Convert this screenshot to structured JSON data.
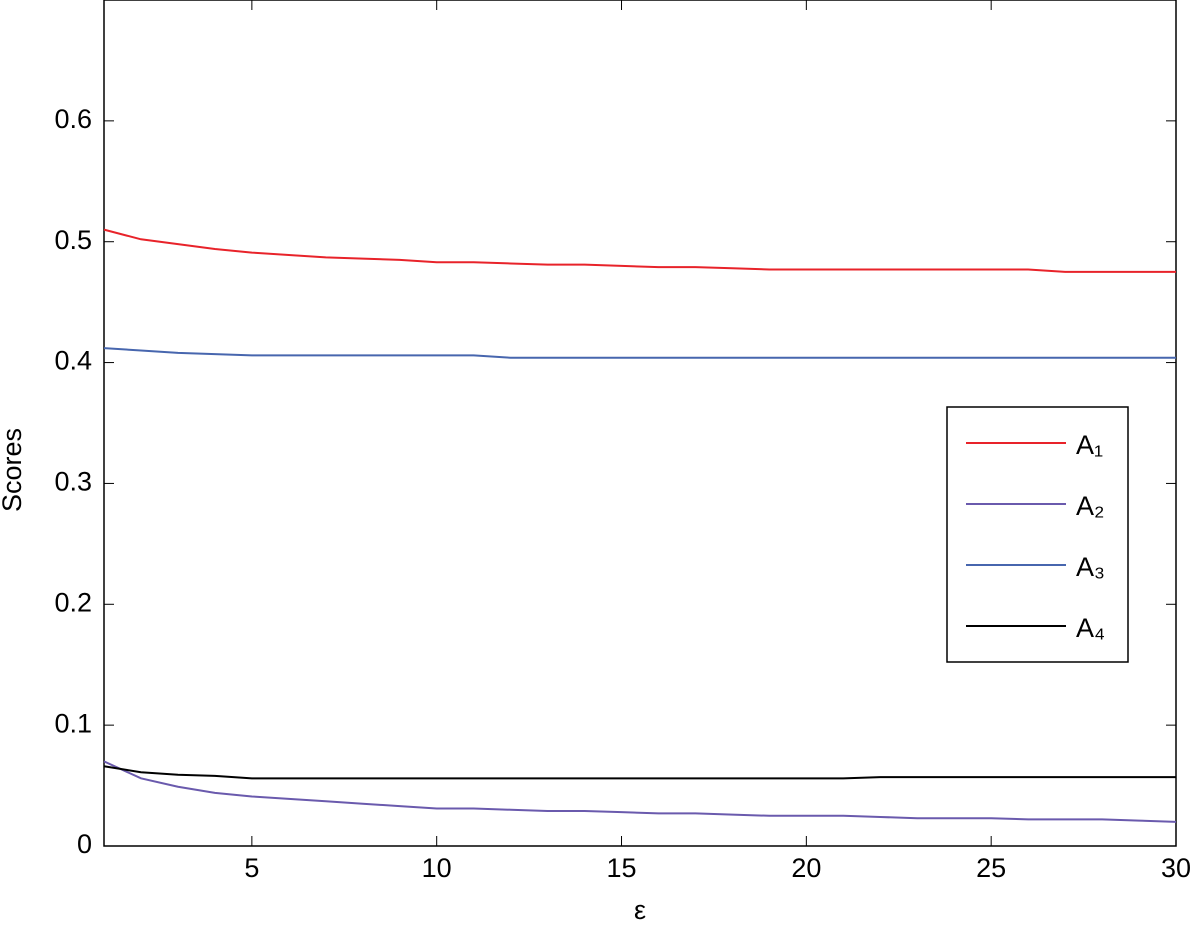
{
  "chart_data": {
    "type": "line",
    "x_label": "ε",
    "y_label": "Scores",
    "x": [
      1,
      2,
      3,
      4,
      5,
      6,
      7,
      8,
      9,
      10,
      11,
      12,
      13,
      14,
      15,
      16,
      17,
      18,
      19,
      20,
      21,
      22,
      23,
      24,
      25,
      26,
      27,
      28,
      29,
      30
    ],
    "series": [
      {
        "name": "A₁",
        "color": "#e8232a",
        "values": [
          0.51,
          0.502,
          0.498,
          0.494,
          0.491,
          0.489,
          0.487,
          0.486,
          0.485,
          0.483,
          0.483,
          0.482,
          0.481,
          0.481,
          0.48,
          0.479,
          0.479,
          0.478,
          0.477,
          0.477,
          0.477,
          0.477,
          0.477,
          0.477,
          0.477,
          0.477,
          0.475,
          0.475,
          0.475,
          0.475
        ]
      },
      {
        "name": "A₂",
        "color": "#6a5aad",
        "values": [
          0.07,
          0.056,
          0.049,
          0.044,
          0.041,
          0.039,
          0.037,
          0.035,
          0.033,
          0.031,
          0.031,
          0.03,
          0.029,
          0.029,
          0.028,
          0.027,
          0.027,
          0.026,
          0.025,
          0.025,
          0.025,
          0.024,
          0.023,
          0.023,
          0.023,
          0.022,
          0.022,
          0.022,
          0.021,
          0.02
        ]
      },
      {
        "name": "A₃",
        "color": "#4766ae",
        "values": [
          0.412,
          0.41,
          0.408,
          0.407,
          0.406,
          0.406,
          0.406,
          0.406,
          0.406,
          0.406,
          0.406,
          0.404,
          0.404,
          0.404,
          0.404,
          0.404,
          0.404,
          0.404,
          0.404,
          0.404,
          0.404,
          0.404,
          0.404,
          0.404,
          0.404,
          0.404,
          0.404,
          0.404,
          0.404,
          0.404
        ]
      },
      {
        "name": "A₄",
        "color": "#000000",
        "values": [
          0.066,
          0.061,
          0.059,
          0.058,
          0.056,
          0.056,
          0.056,
          0.056,
          0.056,
          0.056,
          0.056,
          0.056,
          0.056,
          0.056,
          0.056,
          0.056,
          0.056,
          0.056,
          0.056,
          0.056,
          0.056,
          0.057,
          0.057,
          0.057,
          0.057,
          0.057,
          0.057,
          0.057,
          0.057,
          0.057
        ]
      }
    ],
    "xlim": [
      1,
      30
    ],
    "xticks": [
      5,
      10,
      15,
      20,
      25,
      30
    ],
    "ylim": [
      0,
      0.7
    ],
    "yticks": [
      0,
      0.1,
      0.2,
      0.3,
      0.4,
      0.5,
      0.6
    ],
    "legend": "right"
  }
}
